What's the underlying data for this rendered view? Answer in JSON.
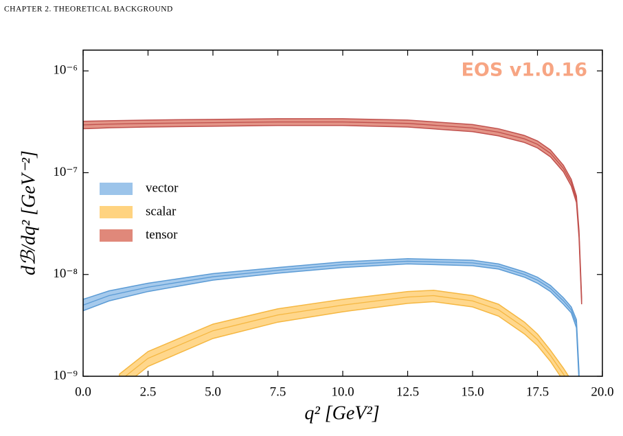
{
  "header": "CHAPTER 2.  THEORETICAL BACKGROUND",
  "chart_data": {
    "type": "band",
    "annotation": "EOS v1.0.16",
    "xlabel": "q² [GeV²]",
    "ylabel": "dℬ/dq² [GeV⁻²]",
    "xlim": [
      0,
      20
    ],
    "xticks": [
      {
        "value": 0,
        "label": "0.0"
      },
      2.5,
      {
        "value": 5,
        "label": "5.0"
      },
      7.5,
      {
        "value": 10,
        "label": "10.0"
      },
      12.5,
      {
        "value": 15,
        "label": "15.0"
      },
      17.5,
      {
        "value": 20,
        "label": "20.0"
      }
    ],
    "ylim": [
      1e-09,
      1.6e-06
    ],
    "yticks": [
      {
        "value": 1e-09,
        "label": "10⁻⁹"
      },
      {
        "value": 1e-08,
        "label": "10⁻⁸"
      },
      {
        "value": 1e-07,
        "label": "10⁻⁷"
      },
      {
        "value": 1e-06,
        "label": "10⁻⁶"
      }
    ],
    "yscale": "log",
    "legend": "center left",
    "series": [
      {
        "name": "vector",
        "color": "#5b9bd5",
        "fill": "#9cc4ea",
        "x": [
          0,
          1,
          2.5,
          5,
          7.5,
          10,
          12.5,
          15,
          16,
          17,
          17.5,
          18,
          18.5,
          18.8,
          19,
          19.1
        ],
        "values": [
          5e-09,
          6.2e-09,
          7.5e-09,
          9.5e-09,
          1.1e-08,
          1.25e-08,
          1.35e-08,
          1.3e-08,
          1.2e-08,
          1e-08,
          8.8e-09,
          7.3e-09,
          5.5e-09,
          4.5e-09,
          3.3e-09,
          1e-09
        ],
        "lower": [
          4.4e-09,
          5.5e-09,
          6.8e-09,
          8.8e-09,
          1.03e-08,
          1.17e-08,
          1.27e-08,
          1.22e-08,
          1.13e-08,
          9.4e-09,
          8.2e-09,
          6.8e-09,
          5.1e-09,
          4.2e-09,
          3e-09,
          9e-10
        ],
        "upper": [
          5.7e-09,
          6.9e-09,
          8.2e-09,
          1.02e-08,
          1.17e-08,
          1.33e-08,
          1.43e-08,
          1.38e-08,
          1.27e-08,
          1.06e-08,
          9.4e-09,
          7.8e-09,
          5.9e-09,
          4.8e-09,
          3.6e-09,
          1.1e-09
        ]
      },
      {
        "name": "scalar",
        "color": "#f5b741",
        "fill": "#ffd380",
        "x": [
          1.4,
          2.5,
          5,
          7.5,
          10,
          12.5,
          13.5,
          15,
          16,
          17,
          17.5,
          18,
          18.5,
          18.7
        ],
        "values": [
          9e-10,
          1.5e-09,
          2.8e-09,
          4e-09,
          5e-09,
          6e-09,
          6.2e-09,
          5.5e-09,
          4.5e-09,
          3e-09,
          2.3e-09,
          1.6e-09,
          1.05e-09,
          8.5e-10
        ],
        "lower": [
          7.5e-10,
          1.25e-09,
          2.35e-09,
          3.4e-09,
          4.3e-09,
          5.2e-09,
          5.4e-09,
          4.8e-09,
          3.9e-09,
          2.6e-09,
          2e-09,
          1.4e-09,
          9e-10,
          7e-10
        ],
        "upper": [
          1.05e-09,
          1.75e-09,
          3.25e-09,
          4.6e-09,
          5.7e-09,
          6.8e-09,
          7e-09,
          6.2e-09,
          5.1e-09,
          3.4e-09,
          2.6e-09,
          1.8e-09,
          1.2e-09,
          1e-09
        ]
      },
      {
        "name": "tensor",
        "color": "#c0504d",
        "fill": "#e0887a",
        "x": [
          0,
          1,
          2.5,
          5,
          7.5,
          10,
          12.5,
          15,
          16,
          17,
          17.5,
          18,
          18.5,
          18.8,
          19,
          19.1,
          19.2
        ],
        "values": [
          2.95e-07,
          3e-07,
          3.05e-07,
          3.1e-07,
          3.15e-07,
          3.15e-07,
          3.05e-07,
          2.75e-07,
          2.5e-07,
          2.15e-07,
          1.9e-07,
          1.55e-07,
          1.1e-07,
          8e-08,
          5.5e-08,
          2.5e-08,
          5.5e-09
        ],
        "lower": [
          2.7e-07,
          2.76e-07,
          2.81e-07,
          2.86e-07,
          2.91e-07,
          2.91e-07,
          2.81e-07,
          2.53e-07,
          2.3e-07,
          1.98e-07,
          1.75e-07,
          1.43e-07,
          1.02e-07,
          7.4e-08,
          5.1e-08,
          2.3e-08,
          5.1e-09
        ],
        "upper": [
          3.2e-07,
          3.24e-07,
          3.29e-07,
          3.34e-07,
          3.39e-07,
          3.39e-07,
          3.29e-07,
          2.97e-07,
          2.7e-07,
          2.32e-07,
          2.05e-07,
          1.67e-07,
          1.18e-07,
          8.6e-08,
          5.9e-08,
          2.7e-08,
          5.9e-09
        ]
      }
    ]
  }
}
